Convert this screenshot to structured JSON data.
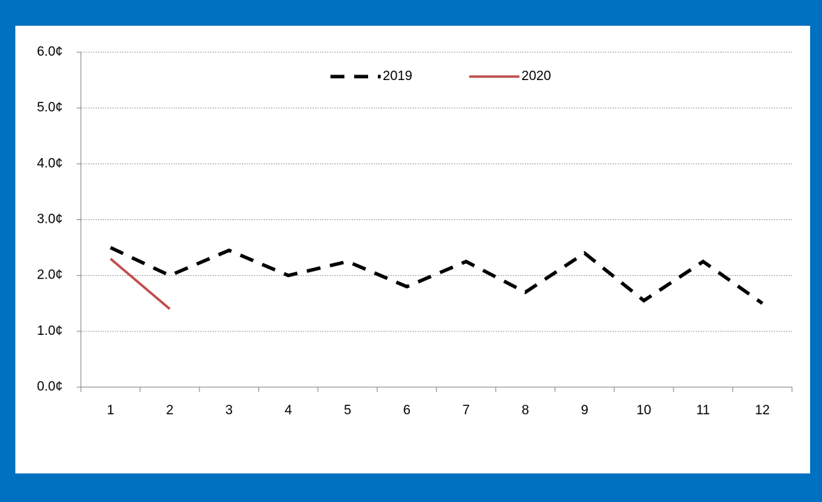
{
  "chart_data": {
    "type": "line",
    "categories": [
      "1",
      "2",
      "3",
      "4",
      "5",
      "6",
      "7",
      "8",
      "9",
      "10",
      "11",
      "12"
    ],
    "series": [
      {
        "name": "2019",
        "color": "#000000",
        "dashed": true,
        "values": [
          2.5,
          2.0,
          2.45,
          2.0,
          2.25,
          1.8,
          2.25,
          1.7,
          2.4,
          1.55,
          2.25,
          1.5
        ]
      },
      {
        "name": "2020",
        "color": "#c0504d",
        "dashed": false,
        "values": [
          2.3,
          1.4,
          null,
          null,
          null,
          null,
          null,
          null,
          null,
          null,
          null,
          null
        ]
      }
    ],
    "ylim": [
      0,
      6
    ],
    "yticks": [
      {
        "value": 0,
        "label": "0.0¢"
      },
      {
        "value": 1,
        "label": "1.0¢"
      },
      {
        "value": 2,
        "label": "2.0¢"
      },
      {
        "value": 3,
        "label": "3.0¢"
      },
      {
        "value": 4,
        "label": "4.0¢"
      },
      {
        "value": 5,
        "label": "5.0¢"
      },
      {
        "value": 6,
        "label": "6.0¢"
      }
    ],
    "grid": true,
    "legend": "top"
  }
}
